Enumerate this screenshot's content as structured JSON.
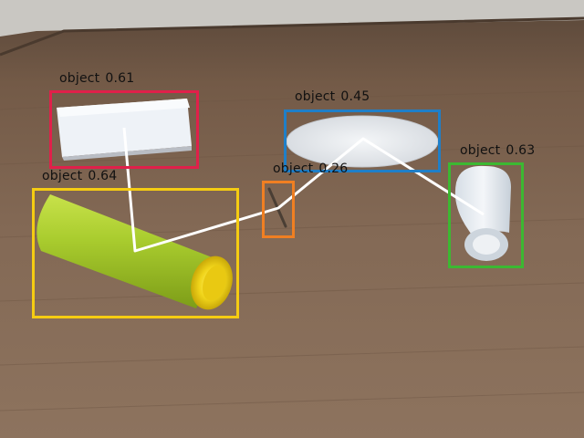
{
  "image_description": "",
  "detections": [
    {
      "class": "object",
      "score": "0.61",
      "color": "#e0204a"
    },
    {
      "class": "object",
      "score": "0.64",
      "color": "#f5cc12"
    },
    {
      "class": "object",
      "score": "0.26",
      "color": "#f07f22"
    },
    {
      "class": "object",
      "score": "0.45",
      "color": "#1f7fc8"
    },
    {
      "class": "object",
      "score": "0.63",
      "color": "#3cb832"
    }
  ],
  "path_color": "#ffffff"
}
